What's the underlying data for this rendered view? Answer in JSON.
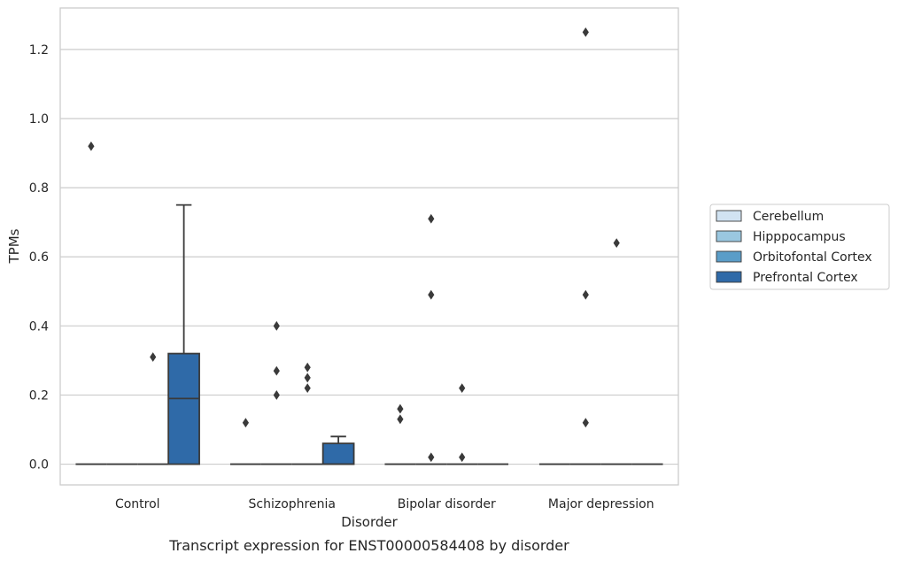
{
  "chart_data": {
    "type": "box",
    "caption": "Transcript expression for ENST00000584408 by disorder",
    "xlabel": "Disorder",
    "ylabel": "TPMs",
    "ylim": [
      -0.06,
      1.32
    ],
    "yticks": [
      0.0,
      0.2,
      0.4,
      0.6,
      0.8,
      1.0,
      1.2
    ],
    "ytick_labels": [
      "0.0",
      "0.2",
      "0.4",
      "0.6",
      "0.8",
      "1.0",
      "1.2"
    ],
    "grid": "horizontal",
    "legend_position": "right",
    "categories": [
      "Control",
      "Schizophrenia",
      "Bipolar disorder",
      "Major depression"
    ],
    "series": [
      {
        "name": "Cerebellum",
        "color": "#d1e3f2",
        "boxes": [
          {
            "q1": 0,
            "median": 0,
            "q3": 0,
            "whisker_low": 0,
            "whisker_high": 0,
            "outliers": [
              0.92
            ]
          },
          {
            "q1": 0,
            "median": 0,
            "q3": 0,
            "whisker_low": 0,
            "whisker_high": 0,
            "outliers": [
              0.12
            ]
          },
          {
            "q1": 0,
            "median": 0,
            "q3": 0,
            "whisker_low": 0,
            "whisker_high": 0,
            "outliers": [
              0.16,
              0.13
            ]
          },
          {
            "q1": 0,
            "median": 0,
            "q3": 0,
            "whisker_low": 0,
            "whisker_high": 0,
            "outliers": []
          }
        ]
      },
      {
        "name": "Hipppocampus",
        "color": "#9ac7e0",
        "boxes": [
          {
            "q1": 0,
            "median": 0,
            "q3": 0,
            "whisker_low": 0,
            "whisker_high": 0,
            "outliers": []
          },
          {
            "q1": 0,
            "median": 0,
            "q3": 0,
            "whisker_low": 0,
            "whisker_high": 0,
            "outliers": [
              0.4,
              0.27,
              0.2
            ]
          },
          {
            "q1": 0,
            "median": 0,
            "q3": 0,
            "whisker_low": 0,
            "whisker_high": 0,
            "outliers": [
              0.71,
              0.49,
              0.02
            ]
          },
          {
            "q1": 0,
            "median": 0,
            "q3": 0,
            "whisker_low": 0,
            "whisker_high": 0,
            "outliers": [
              1.25,
              0.49,
              0.12
            ]
          }
        ]
      },
      {
        "name": "Orbitofontal Cortex",
        "color": "#5a9dc8",
        "boxes": [
          {
            "q1": 0,
            "median": 0,
            "q3": 0,
            "whisker_low": 0,
            "whisker_high": 0,
            "outliers": [
              0.31
            ]
          },
          {
            "q1": 0,
            "median": 0,
            "q3": 0,
            "whisker_low": 0,
            "whisker_high": 0,
            "outliers": [
              0.28,
              0.25,
              0.22
            ]
          },
          {
            "q1": 0,
            "median": 0,
            "q3": 0,
            "whisker_low": 0,
            "whisker_high": 0,
            "outliers": [
              0.22,
              0.02
            ]
          },
          {
            "q1": 0,
            "median": 0,
            "q3": 0,
            "whisker_low": 0,
            "whisker_high": 0,
            "outliers": [
              0.64
            ]
          }
        ]
      },
      {
        "name": "Prefrontal Cortex",
        "color": "#2f6aa8",
        "boxes": [
          {
            "q1": 0,
            "median": 0.19,
            "q3": 0.32,
            "whisker_low": 0,
            "whisker_high": 0.75,
            "outliers": []
          },
          {
            "q1": 0,
            "median": 0,
            "q3": 0.06,
            "whisker_low": 0,
            "whisker_high": 0.08,
            "outliers": []
          },
          {
            "q1": 0,
            "median": 0,
            "q3": 0,
            "whisker_low": 0,
            "whisker_high": 0,
            "outliers": []
          },
          {
            "q1": 0,
            "median": 0,
            "q3": 0,
            "whisker_low": 0,
            "whisker_high": 0,
            "outliers": []
          }
        ]
      }
    ]
  }
}
